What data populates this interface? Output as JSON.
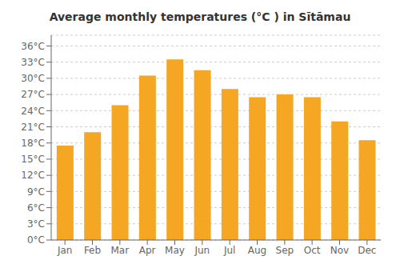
{
  "chart_data": {
    "type": "bar",
    "title": "Average monthly temperatures (°C ) in Sītāmau",
    "categories": [
      "Jan",
      "Feb",
      "Mar",
      "Apr",
      "May",
      "Jun",
      "Jul",
      "Aug",
      "Sep",
      "Oct",
      "Nov",
      "Dec"
    ],
    "values": [
      17.5,
      20.0,
      25.0,
      30.5,
      33.5,
      31.5,
      28.0,
      26.5,
      27.0,
      26.5,
      22.0,
      18.5
    ],
    "color": "#F5A623",
    "ylim": [
      0,
      38
    ],
    "yticks": [
      {
        "value": 0,
        "label": "0°C"
      },
      {
        "value": 3,
        "label": "3°C"
      },
      {
        "value": 6,
        "label": "6°C"
      },
      {
        "value": 9,
        "label": "9°C"
      },
      {
        "value": 12,
        "label": "12°C"
      },
      {
        "value": 15,
        "label": "15°C"
      },
      {
        "value": 18,
        "label": "18°C"
      },
      {
        "value": 21,
        "label": "21°C"
      },
      {
        "value": 24,
        "label": "24°C"
      },
      {
        "value": 27,
        "label": "27°C"
      },
      {
        "value": 30,
        "label": "30°C"
      },
      {
        "value": 33,
        "label": "33°C"
      },
      {
        "value": 36,
        "label": "36°C"
      }
    ],
    "grid": true
  }
}
